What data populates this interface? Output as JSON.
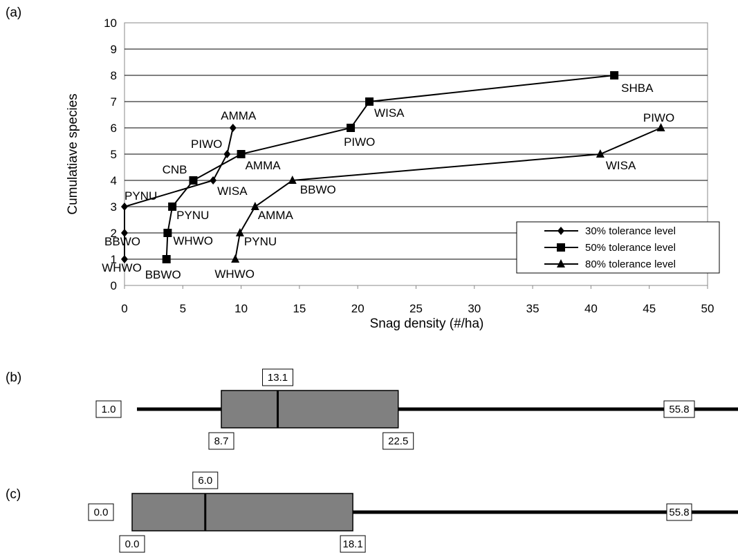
{
  "panels": {
    "a": "(a)",
    "b": "(b)",
    "c": "(c)"
  },
  "chart_data": [
    {
      "type": "line",
      "xlabel": "Snag density (#/ha)",
      "ylabel": "Cumulatiave species",
      "xlim": [
        0,
        50
      ],
      "ylim": [
        0,
        10
      ],
      "xticks": [
        0,
        5,
        10,
        15,
        20,
        25,
        30,
        35,
        40,
        45,
        50
      ],
      "yticks": [
        0,
        1,
        2,
        3,
        4,
        5,
        6,
        7,
        8,
        9,
        10
      ],
      "grid": "horizontal",
      "legend_position": "lower-right",
      "series": [
        {
          "name": "30% tolerance level",
          "marker": "diamond",
          "points": [
            {
              "x": 0,
              "y": 1,
              "label": "WHWO"
            },
            {
              "x": 0,
              "y": 2,
              "label": "BBWO"
            },
            {
              "x": 0,
              "y": 3,
              "label": "PYNU"
            },
            {
              "x": 7.6,
              "y": 4,
              "label": "WISA"
            },
            {
              "x": 8.8,
              "y": 5,
              "label": "PIWO"
            },
            {
              "x": 9.3,
              "y": 6,
              "label": "AMMA"
            }
          ]
        },
        {
          "name": "50% tolerance level",
          "marker": "square",
          "points": [
            {
              "x": 3.6,
              "y": 1,
              "label": "BBWO"
            },
            {
              "x": 3.7,
              "y": 2,
              "label": "WHWO"
            },
            {
              "x": 4.1,
              "y": 3,
              "label": "PYNU"
            },
            {
              "x": 5.9,
              "y": 4,
              "label": "CNB"
            },
            {
              "x": 10.0,
              "y": 5,
              "label": "AMMA"
            },
            {
              "x": 19.4,
              "y": 6,
              "label": "PIWO"
            },
            {
              "x": 21.0,
              "y": 7,
              "label": "WISA"
            },
            {
              "x": 42.0,
              "y": 8,
              "label": "SHBA"
            }
          ]
        },
        {
          "name": "80% tolerance level",
          "marker": "triangle",
          "points": [
            {
              "x": 9.5,
              "y": 1,
              "label": "WHWO"
            },
            {
              "x": 9.9,
              "y": 2,
              "label": "PYNU"
            },
            {
              "x": 11.2,
              "y": 3,
              "label": "AMMA"
            },
            {
              "x": 14.4,
              "y": 4,
              "label": "BBWO"
            },
            {
              "x": 40.8,
              "y": 5,
              "label": "WISA"
            },
            {
              "x": 46.0,
              "y": 6,
              "label": "PIWO"
            }
          ]
        }
      ]
    },
    {
      "type": "box",
      "panel": "b",
      "min": 1.0,
      "q1": 8.7,
      "median": 13.1,
      "q3": 22.5,
      "max": 55.8,
      "labels": {
        "min": "1.0",
        "q1": "8.7",
        "median": "13.1",
        "q3": "22.5",
        "max": "55.8"
      }
    },
    {
      "type": "box",
      "panel": "c",
      "min": 0.0,
      "q1": 0.0,
      "median": 6.0,
      "q3": 18.1,
      "max": 55.8,
      "labels": {
        "min": "0.0",
        "q1": "0.0",
        "median": "6.0",
        "q3": "18.1",
        "max": "55.8"
      }
    }
  ]
}
